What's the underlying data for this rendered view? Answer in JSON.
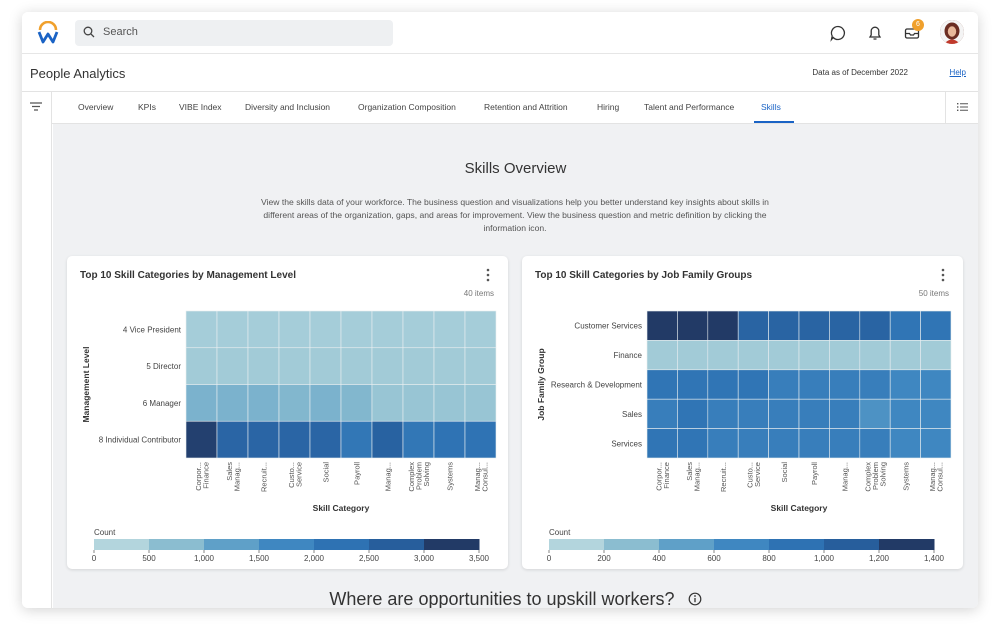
{
  "app": {
    "page_title": "People Analytics",
    "data_as_of": "Data as of December 2022",
    "help_label": "Help",
    "notification_count": "6"
  },
  "search": {
    "placeholder": "Search"
  },
  "tabs": [
    {
      "label": "Overview"
    },
    {
      "label": "KPIs"
    },
    {
      "label": "VIBE Index"
    },
    {
      "label": "Diversity and Inclusion"
    },
    {
      "label": "Organization Composition"
    },
    {
      "label": "Retention and Attrition"
    },
    {
      "label": "Hiring"
    },
    {
      "label": "Talent and Performance"
    },
    {
      "label": "Skills"
    }
  ],
  "active_tab": "Skills",
  "main": {
    "title": "Skills Overview",
    "intro": "View the skills data of your workforce. The business question and visualizations help you better understand key insights about skills in different areas of the organization, gaps, and areas for improvement. View the business question and metric definition by clicking the information icon.",
    "section_heading": "Where are opportunities to upskill workers?"
  },
  "colors": {
    "accent": "#1a63c5",
    "scale_low": "#b3d5dd",
    "scale_high": "#223a66"
  },
  "chart_data": [
    {
      "type": "heatmap",
      "title": "Top 10 Skill Categories by Management Level",
      "item_count": "40 items",
      "xlabel": "Skill Category",
      "ylabel": "Management Level",
      "categories": [
        "Corpor... Finance",
        "Sales Manag...",
        "Recruit...",
        "Custo... Service",
        "Social",
        "Payroll",
        "Manag...",
        "Complex Problem Solving",
        "Systems",
        "Manag... Consul..."
      ],
      "rows": [
        "4 Vice President",
        "5 Director",
        "6 Manager",
        "8 Individual Contributor"
      ],
      "values": [
        [
          200,
          200,
          200,
          200,
          200,
          200,
          200,
          200,
          200,
          200
        ],
        [
          250,
          250,
          250,
          250,
          250,
          250,
          250,
          250,
          250,
          250
        ],
        [
          800,
          800,
          800,
          700,
          800,
          700,
          400,
          400,
          400,
          400
        ],
        [
          3400,
          2700,
          2700,
          2700,
          2700,
          2200,
          2800,
          2200,
          2300,
          2300
        ]
      ],
      "legend_title": "Count",
      "legend_ticks": [
        "0",
        "500",
        "1,000",
        "1,500",
        "2,000",
        "2,500",
        "3,000",
        "3,500"
      ],
      "range": [
        0,
        3500
      ]
    },
    {
      "type": "heatmap",
      "title": "Top 10 Skill Categories by Job Family Groups",
      "item_count": "50 items",
      "xlabel": "Skill Category",
      "ylabel": "Job Family Group",
      "categories": [
        "Corpor... Finance",
        "Sales Manag...",
        "Recruit...",
        "Custo... Service",
        "Social",
        "Payroll",
        "Manag...",
        "Complex Problem Solving",
        "Systems",
        "Manag... Consul..."
      ],
      "rows": [
        "Customer Services",
        "Finance",
        "Research & Development",
        "Sales",
        "Services"
      ],
      "values": [
        [
          1400,
          1400,
          1400,
          1100,
          1100,
          1100,
          1100,
          1100,
          900,
          900
        ],
        [
          100,
          100,
          100,
          100,
          100,
          100,
          100,
          100,
          100,
          100
        ],
        [
          900,
          900,
          900,
          900,
          800,
          800,
          800,
          800,
          700,
          700
        ],
        [
          800,
          900,
          800,
          800,
          800,
          800,
          800,
          600,
          700,
          700
        ],
        [
          900,
          900,
          800,
          800,
          800,
          800,
          800,
          800,
          700,
          700
        ]
      ],
      "legend_title": "Count",
      "legend_ticks": [
        "0",
        "200",
        "400",
        "600",
        "800",
        "1,000",
        "1,200",
        "1,400"
      ],
      "range": [
        0,
        1400
      ]
    }
  ]
}
